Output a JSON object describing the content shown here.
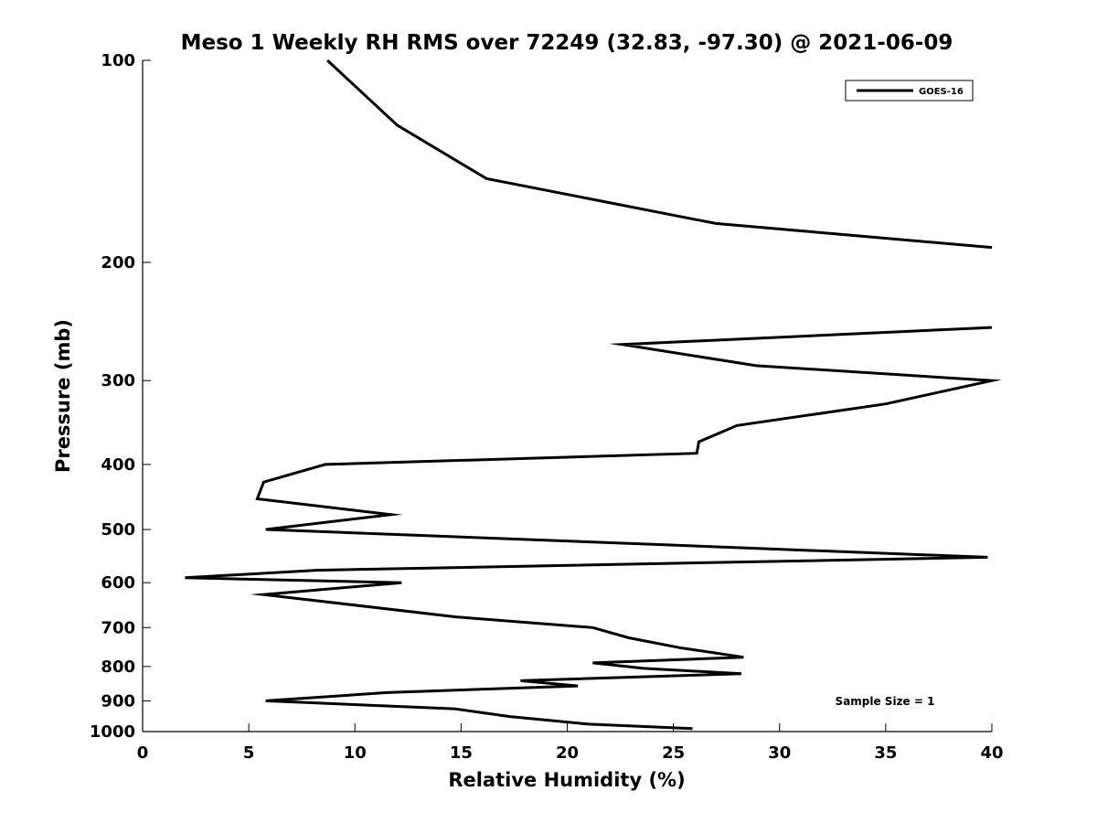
{
  "chart_data": {
    "type": "line",
    "title": "Meso 1 Weekly RH RMS over 72249 (32.83, -97.30) @ 2021-06-09",
    "xlabel": "Relative Humidity (%)",
    "ylabel": "Pressure (mb)",
    "xlim": [
      0,
      40
    ],
    "ylim": [
      1000,
      100
    ],
    "yscale": "log",
    "xticks": [
      0,
      5,
      10,
      15,
      20,
      25,
      30,
      35,
      40
    ],
    "yticks": [
      100,
      200,
      300,
      400,
      500,
      600,
      700,
      800,
      900,
      1000
    ],
    "grid": false,
    "legend_position": "top-right",
    "annotation": "Sample Size = 1",
    "series": [
      {
        "name": "GOES-16",
        "color": "#000000",
        "points": [
          {
            "x": 8.7,
            "p": 100
          },
          {
            "x": 12.0,
            "p": 125
          },
          {
            "x": 16.2,
            "p": 150
          },
          {
            "x": 27.0,
            "p": 175
          },
          {
            "x": 40.0,
            "p": 190
          },
          {
            "x": null,
            "p": 200
          },
          {
            "x": 40.0,
            "p": 250
          },
          {
            "x": 22.6,
            "p": 265
          },
          {
            "x": 28.9,
            "p": 285
          },
          {
            "x": 40.0,
            "p": 300
          },
          {
            "x": 35.0,
            "p": 325
          },
          {
            "x": 28.0,
            "p": 350
          },
          {
            "x": 26.2,
            "p": 370
          },
          {
            "x": 26.1,
            "p": 385
          },
          {
            "x": 8.6,
            "p": 400
          },
          {
            "x": 5.7,
            "p": 425
          },
          {
            "x": 5.4,
            "p": 450
          },
          {
            "x": 11.7,
            "p": 475
          },
          {
            "x": 5.8,
            "p": 500
          },
          {
            "x": 39.8,
            "p": 550
          },
          {
            "x": 8.2,
            "p": 575
          },
          {
            "x": 2.0,
            "p": 590
          },
          {
            "x": 12.2,
            "p": 600
          },
          {
            "x": 5.7,
            "p": 625
          },
          {
            "x": 14.8,
            "p": 675
          },
          {
            "x": 21.2,
            "p": 700
          },
          {
            "x": 22.9,
            "p": 725
          },
          {
            "x": 25.3,
            "p": 750
          },
          {
            "x": 28.3,
            "p": 775
          },
          {
            "x": 21.2,
            "p": 790
          },
          {
            "x": 23.6,
            "p": 805
          },
          {
            "x": 28.2,
            "p": 820
          },
          {
            "x": 17.8,
            "p": 840
          },
          {
            "x": 20.5,
            "p": 855
          },
          {
            "x": 11.5,
            "p": 875
          },
          {
            "x": 5.8,
            "p": 900
          },
          {
            "x": 14.7,
            "p": 925
          },
          {
            "x": 17.3,
            "p": 950
          },
          {
            "x": 21.0,
            "p": 975
          },
          {
            "x": 25.9,
            "p": 990
          }
        ]
      }
    ]
  }
}
